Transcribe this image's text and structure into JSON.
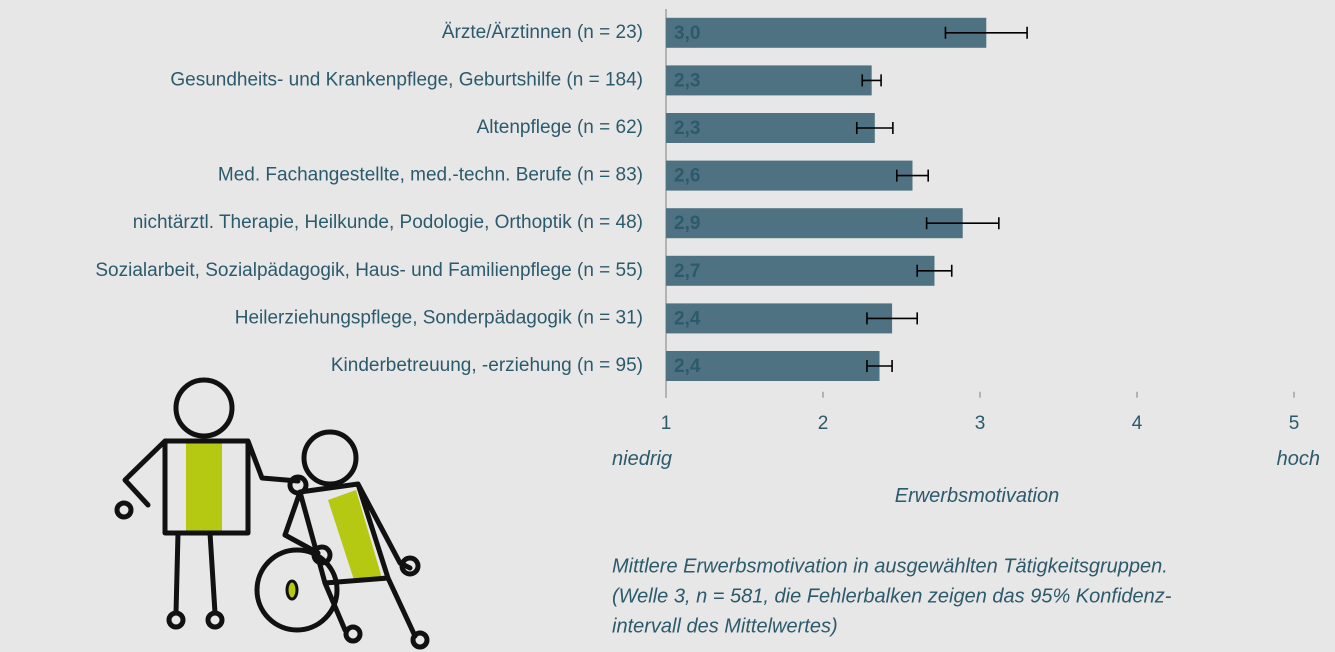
{
  "chart_data": {
    "type": "bar",
    "orientation": "horizontal",
    "categories": [
      "Ärzte/Ärztinnen (n = 23)",
      "Gesundheits- und Krankenpflege, Geburtshilfe (n = 184)",
      "Altenpflege (n = 62)",
      "Med. Fachangestellte, med.-techn. Berufe (n = 83)",
      "nichtärztl. Therapie, Heilkunde, Podologie, Orthoptik (n = 48)",
      "Sozialarbeit, Sozialpädagogik, Haus- und Familienpflege (n = 55)",
      "Heilerziehungspflege, Sonderpädagogik (n = 31)",
      "Kinderbetreuung, -erziehung (n = 95)"
    ],
    "values": [
      3.04,
      2.31,
      2.33,
      2.57,
      2.89,
      2.71,
      2.44,
      2.36
    ],
    "value_labels": [
      "3,0",
      "2,3",
      "2,3",
      "2,6",
      "2,9",
      "2,7",
      "2,4",
      "2,4"
    ],
    "errors": [
      0.26,
      0.06,
      0.115,
      0.1,
      0.23,
      0.11,
      0.16,
      0.08
    ],
    "color": "#4f7282",
    "xlim": [
      1,
      5
    ],
    "xticks": [
      1,
      2,
      3,
      4,
      5
    ],
    "scale_labels": {
      "low": "niedrig",
      "high": "hoch"
    },
    "xlabel": "Erwerbsmotivation",
    "caption": [
      "Mittlere Erwerbsmotivation in ausgewählten Tätigkeitsgruppen.",
      "(Welle 3, n = 581, die Fehlerbalken zeigen das 95% Konfidenz-",
      "intervall des Mittelwertes)"
    ]
  }
}
